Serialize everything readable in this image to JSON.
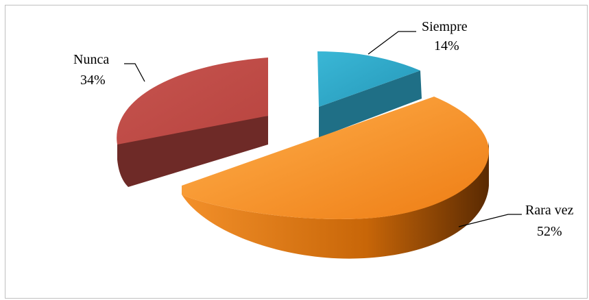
{
  "chart_data": {
    "type": "pie",
    "categories": [
      "Siempre",
      "Rara vez",
      "Nunca"
    ],
    "values": [
      14,
      52,
      34
    ],
    "labels": [
      {
        "name": "Siempre",
        "pct": "14%"
      },
      {
        "name": "Rara vez",
        "pct": "52%"
      },
      {
        "name": "Nunca",
        "pct": "34%"
      }
    ],
    "colors": {
      "Siempre": "#2fa8c6",
      "Rara vez": "#f28c28",
      "Nunca": "#c0504d"
    },
    "style": "3d-exploded",
    "legend": "none"
  }
}
